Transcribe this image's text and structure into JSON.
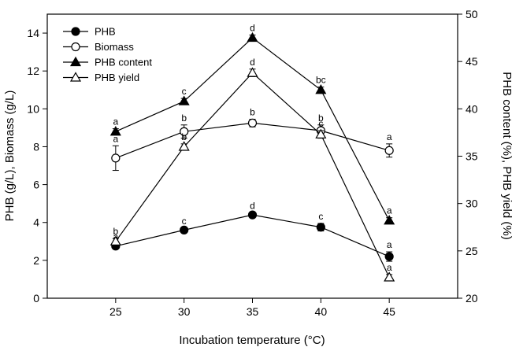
{
  "chart_data": {
    "type": "line",
    "xlabel": "Incubation temperature (°C)",
    "ylabel_left": "PHB (g/L), Biomass (g/L)",
    "ylabel_right": "PHB content (%), PHB yield (%)",
    "x": [
      25,
      30,
      35,
      40,
      45
    ],
    "xlim": [
      20,
      50
    ],
    "ylim_left": [
      0,
      15
    ],
    "ylim_right": [
      20,
      50
    ],
    "xticks": [
      25,
      30,
      35,
      40,
      45
    ],
    "yticks_left": [
      0,
      2,
      4,
      6,
      8,
      10,
      12,
      14
    ],
    "yticks_right": [
      20,
      25,
      30,
      35,
      40,
      45,
      50
    ],
    "grid": false,
    "legend_position": "top-left",
    "series": [
      {
        "name": "PHB",
        "axis": "left",
        "marker": "circle",
        "fill": "filled",
        "values": [
          2.75,
          3.6,
          4.4,
          3.75,
          2.2
        ],
        "errors": [
          0.12,
          0.1,
          0.1,
          0.2,
          0.25
        ],
        "labels": [
          "a",
          "c",
          "d",
          "c",
          "a"
        ]
      },
      {
        "name": "Biomass",
        "axis": "left",
        "marker": "circle",
        "fill": "open",
        "values": [
          7.4,
          8.8,
          9.25,
          8.85,
          7.8
        ],
        "errors": [
          0.65,
          0.35,
          0.2,
          0.3,
          0.35
        ],
        "labels": [
          "a",
          "b",
          "b",
          "b",
          "a"
        ]
      },
      {
        "name": "PHB content",
        "axis": "right",
        "marker": "triangle",
        "fill": "filled",
        "values": [
          37.6,
          40.8,
          47.5,
          42.0,
          28.2
        ],
        "errors": [
          0.3,
          0.3,
          0.3,
          0.3,
          0.3
        ],
        "labels": [
          "a",
          "c",
          "d",
          "bc",
          "a"
        ]
      },
      {
        "name": "PHB yield",
        "axis": "right",
        "marker": "triangle",
        "fill": "open",
        "values": [
          26.0,
          36.0,
          43.8,
          37.3,
          22.2
        ],
        "errors": [
          0.3,
          0.3,
          0.4,
          0.4,
          0.3
        ],
        "labels": [
          "b",
          "b",
          "d",
          "c",
          "a"
        ]
      }
    ]
  }
}
